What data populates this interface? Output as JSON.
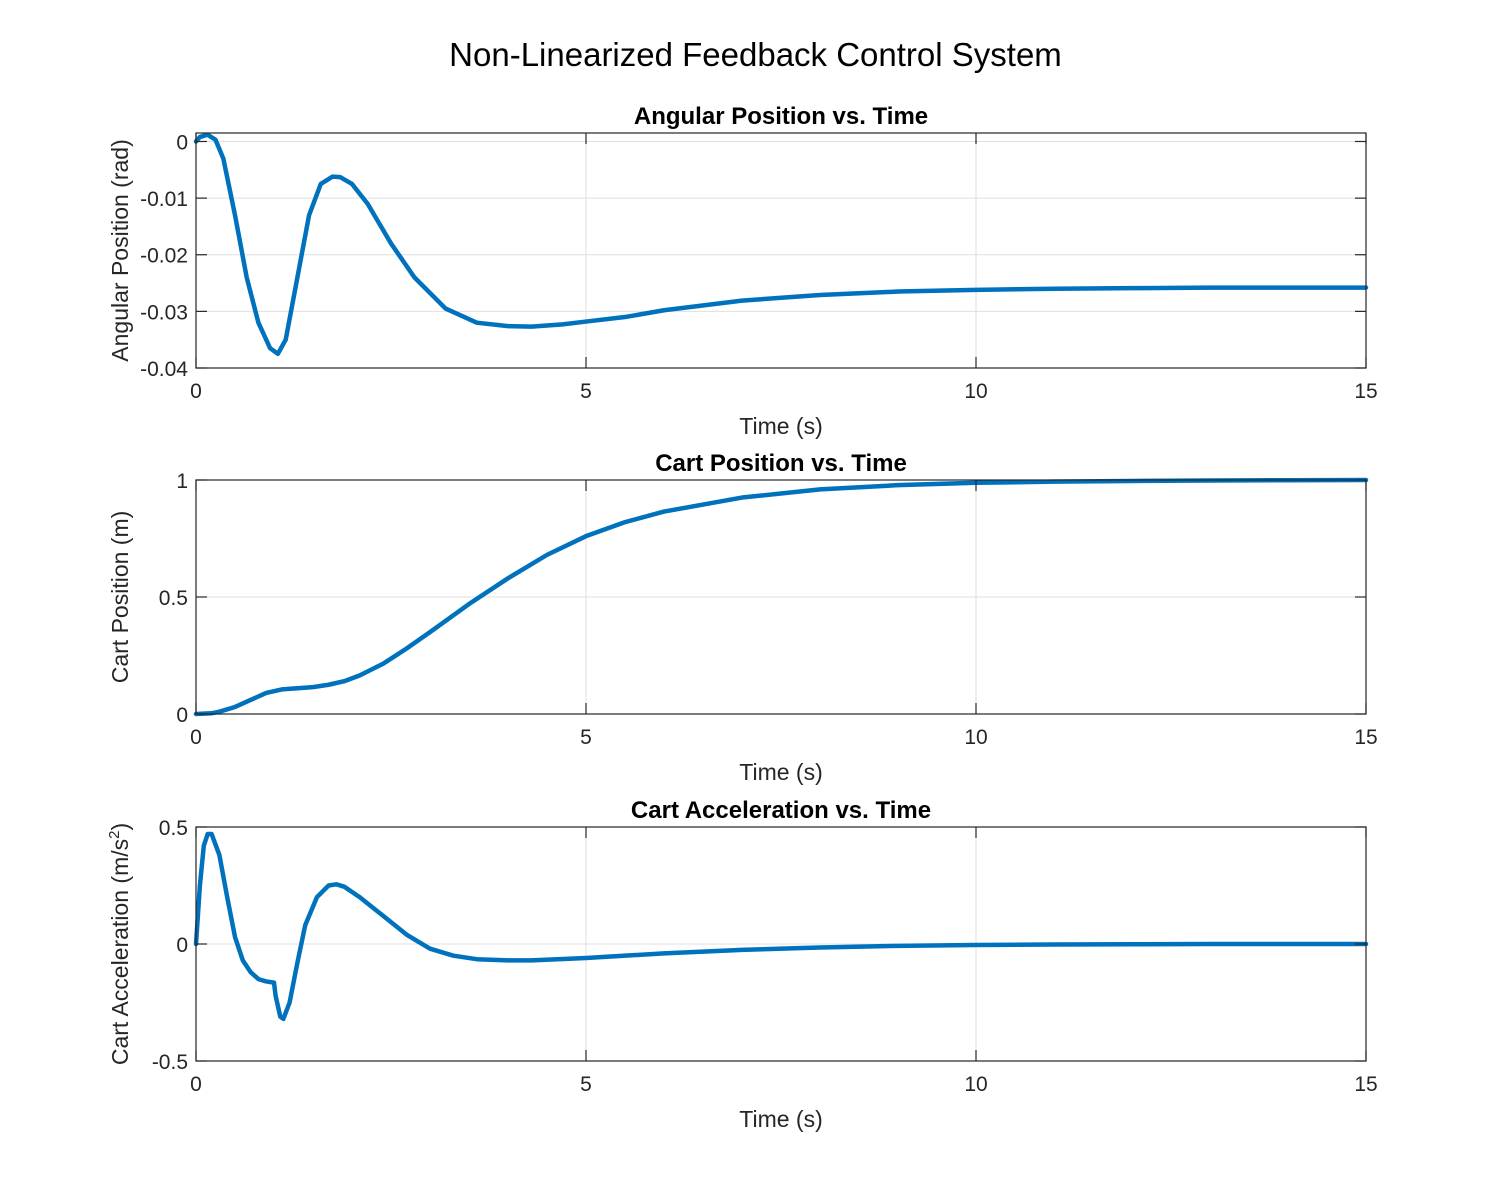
{
  "figure": {
    "title": "Non-Linearized Feedback Control System"
  },
  "colors": {
    "line": "#0072BD",
    "grid": "#DFDFDF",
    "axis": "#262626"
  },
  "chart_data": [
    {
      "type": "line",
      "title": "Angular Position vs. Time",
      "xlabel": "Time (s)",
      "ylabel": "Angular Position (rad)",
      "xlim": [
        0,
        15
      ],
      "ylim": [
        -0.04,
        0.0015
      ],
      "xticks": [
        0,
        5,
        10,
        15
      ],
      "xtick_labels": [
        "0",
        "5",
        "10",
        "15"
      ],
      "yticks": [
        0,
        -0.01,
        -0.02,
        -0.03,
        -0.04
      ],
      "ytick_labels": [
        "0",
        "-0.01",
        "-0.02",
        "-0.03",
        "-0.04"
      ],
      "grid": true,
      "series": [
        {
          "x": [
            0,
            0.05,
            0.15,
            0.25,
            0.35,
            0.5,
            0.65,
            0.8,
            0.95,
            1.05,
            1.15,
            1.3,
            1.45,
            1.6,
            1.75,
            1.85,
            2.0,
            2.2,
            2.5,
            2.8,
            3.2,
            3.6,
            4.0,
            4.3,
            4.7,
            5.0,
            5.5,
            6.0,
            7.0,
            8.0,
            9.0,
            10.0,
            11.0,
            12.0,
            13.0,
            14.0,
            15.0
          ],
          "y": [
            0,
            0.0008,
            0.0012,
            0.0003,
            -0.003,
            -0.013,
            -0.024,
            -0.032,
            -0.0365,
            -0.0375,
            -0.035,
            -0.024,
            -0.013,
            -0.0075,
            -0.0062,
            -0.0063,
            -0.0075,
            -0.011,
            -0.018,
            -0.024,
            -0.0295,
            -0.032,
            -0.0326,
            -0.0327,
            -0.0323,
            -0.0318,
            -0.031,
            -0.0298,
            -0.0281,
            -0.0271,
            -0.0265,
            -0.0262,
            -0.026,
            -0.0259,
            -0.0258,
            -0.0258,
            -0.0258
          ]
        }
      ]
    },
    {
      "type": "line",
      "title": "Cart Position vs. Time",
      "xlabel": "Time (s)",
      "ylabel": "Cart Position (m)",
      "xlim": [
        0,
        15
      ],
      "ylim": [
        0,
        1
      ],
      "xticks": [
        0,
        5,
        10,
        15
      ],
      "xtick_labels": [
        "0",
        "5",
        "10",
        "15"
      ],
      "yticks": [
        0,
        0.5,
        1
      ],
      "ytick_labels": [
        "0",
        "0.5",
        "1"
      ],
      "grid": true,
      "series": [
        {
          "x": [
            0,
            0.2,
            0.3,
            0.5,
            0.7,
            0.9,
            1.1,
            1.3,
            1.5,
            1.7,
            1.9,
            2.1,
            2.4,
            2.7,
            3.0,
            3.5,
            4.0,
            4.5,
            5.0,
            5.5,
            6.0,
            7.0,
            8.0,
            9.0,
            10.0,
            11.0,
            12.0,
            13.0,
            14.0,
            15.0
          ],
          "y": [
            0,
            0.003,
            0.01,
            0.03,
            0.06,
            0.09,
            0.105,
            0.11,
            0.115,
            0.125,
            0.14,
            0.165,
            0.215,
            0.28,
            0.35,
            0.47,
            0.58,
            0.68,
            0.76,
            0.82,
            0.865,
            0.925,
            0.96,
            0.978,
            0.988,
            0.993,
            0.996,
            0.998,
            0.999,
            1.0
          ]
        }
      ]
    },
    {
      "type": "line",
      "title": "Cart Acceleration vs. Time",
      "xlabel": "Time (s)",
      "ylabel": "Cart Acceleration (m/s",
      "ylabel_sup": "2",
      "ylabel_close": ")",
      "xlim": [
        0,
        15
      ],
      "ylim": [
        -0.5,
        0.5
      ],
      "xticks": [
        0,
        5,
        10,
        15
      ],
      "xtick_labels": [
        "0",
        "5",
        "10",
        "15"
      ],
      "yticks": [
        0.5,
        0,
        -0.5
      ],
      "ytick_labels": [
        "0.5",
        "0",
        "-0.5"
      ],
      "grid": true,
      "series": [
        {
          "x": [
            0,
            0.05,
            0.1,
            0.15,
            0.2,
            0.3,
            0.4,
            0.5,
            0.6,
            0.7,
            0.8,
            0.9,
            1.0,
            1.02,
            1.08,
            1.12,
            1.2,
            1.3,
            1.4,
            1.55,
            1.7,
            1.8,
            1.9,
            2.1,
            2.4,
            2.7,
            3.0,
            3.3,
            3.6,
            4.0,
            4.3,
            5.0,
            6.0,
            7.0,
            8.0,
            9.0,
            10.0,
            11.0,
            12.0,
            13.0,
            14.0,
            15.0
          ],
          "y": [
            0,
            0.25,
            0.42,
            0.47,
            0.47,
            0.38,
            0.2,
            0.03,
            -0.07,
            -0.12,
            -0.15,
            -0.16,
            -0.165,
            -0.22,
            -0.31,
            -0.32,
            -0.25,
            -0.08,
            0.08,
            0.2,
            0.25,
            0.255,
            0.245,
            0.2,
            0.12,
            0.04,
            -0.02,
            -0.05,
            -0.065,
            -0.07,
            -0.07,
            -0.06,
            -0.04,
            -0.025,
            -0.015,
            -0.008,
            -0.004,
            -0.002,
            -0.001,
            0,
            0,
            0
          ]
        }
      ]
    }
  ]
}
